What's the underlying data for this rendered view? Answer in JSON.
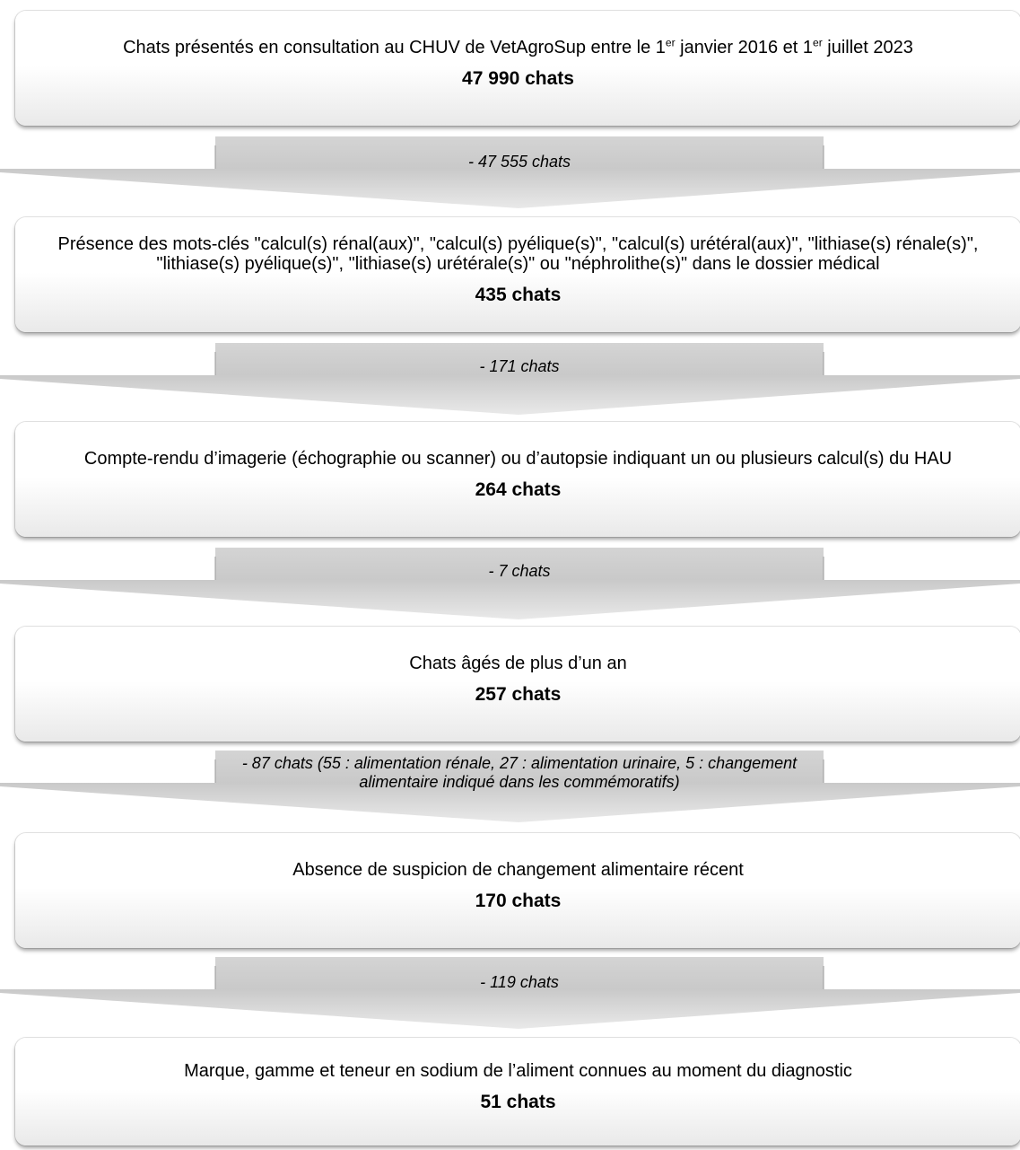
{
  "steps": [
    {
      "label_pre": "Chats présentés en consultation au CHUV de VetAgroSup entre le 1",
      "sup1": "er",
      "label_mid": " janvier 2016 et 1",
      "sup2": "er",
      "label_post": " juillet 2023",
      "count": "47 990 chats"
    },
    {
      "label": "Présence des mots-clés \"calcul(s) rénal(aux)\", \"calcul(s) pyélique(s)\", \"calcul(s) urétéral(aux)\", \"lithiase(s) rénale(s)\", \"lithiase(s) pyélique(s)\", \"lithiase(s) urétérale(s)\" ou \"néphrolithe(s)\" dans le dossier médical",
      "count": "435 chats"
    },
    {
      "label": "Compte-rendu d’imagerie (échographie ou scanner) ou d’autopsie indiquant un ou plusieurs calcul(s) du HAU",
      "count": "264 chats"
    },
    {
      "label": "Chats âgés de plus d’un an",
      "count": "257 chats"
    },
    {
      "label": "Absence de suspicion de changement alimentaire récent",
      "count": "170 chats"
    },
    {
      "label": "Marque, gamme et teneur en sodium de l’aliment connues au moment du diagnostic",
      "count": "51 chats"
    }
  ],
  "exclusions": [
    "- 47 555 chats",
    "- 171 chats",
    "- 7 chats",
    "- 87 chats (55 : alimentation rénale, 27 : alimentation urinaire, 5 : changement alimentaire indiqué dans les commémoratifs)",
    "- 119 chats"
  ]
}
